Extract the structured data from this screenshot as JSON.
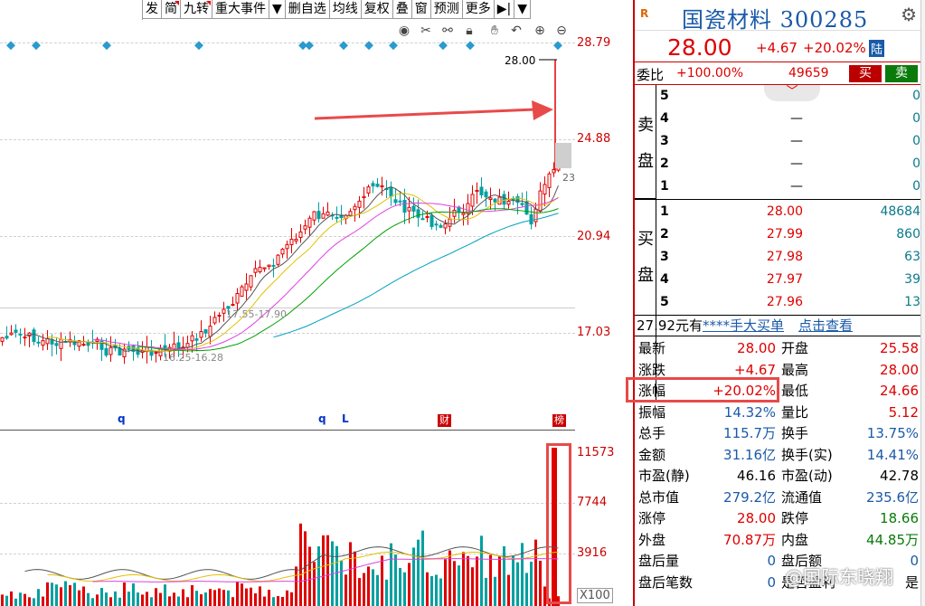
{
  "toolbar": {
    "items": [
      "发",
      "简",
      "九转",
      "重大事件",
      "▼",
      "删自选",
      "均线",
      "复权",
      "叠",
      "窗",
      "预测",
      "更多",
      "▶|",
      "▼"
    ],
    "icons": [
      "eye-icon",
      "scissors-icon",
      "link-icon",
      "lock-icon",
      "hand-icon",
      "undo-icon",
      "zoom-in-icon",
      "zoom-out-icon"
    ]
  },
  "chart": {
    "price_axis": [
      "28.79",
      "24.88",
      "20.94",
      "17.03"
    ],
    "volume_axis": [
      "11573",
      "7744",
      "3916"
    ],
    "volume_unit": "X100",
    "last_price_label": "28.00",
    "range_label_high": "17.55-17.90",
    "range_label_low": "16.25-16.28",
    "tag_23": "23",
    "markers": [
      "q",
      "q",
      "L",
      "财",
      "榜"
    ],
    "colors": {
      "up": "#e00000",
      "down": "#00a0a0",
      "ma5": "#555555",
      "ma10": "#e4c000",
      "ma20": "#e040e0",
      "ma30": "#00a000",
      "ma60": "#00a0c0",
      "arrow": "#e84a4a"
    }
  },
  "quote": {
    "logo": "R",
    "name": "国瓷材料 300285",
    "price": "28.00",
    "change": "+4.67",
    "change_pct": "+20.02%",
    "badge": "陆",
    "weibi_label": "委比",
    "weibi": "+100.00%",
    "weicha": "49659",
    "buy_btn": "买",
    "sell_btn": "卖",
    "ask_side_label": [
      "卖",
      "盘"
    ],
    "bid_side_label": [
      "买",
      "盘"
    ],
    "asks": [
      {
        "level": "5",
        "price": "",
        "qty": "0"
      },
      {
        "level": "4",
        "price": "—",
        "qty": "0"
      },
      {
        "level": "3",
        "price": "—",
        "qty": "0"
      },
      {
        "level": "2",
        "price": "—",
        "qty": "0"
      },
      {
        "level": "1",
        "price": "—",
        "qty": "0"
      }
    ],
    "bids": [
      {
        "level": "1",
        "price": "28.00",
        "qty": "48684"
      },
      {
        "level": "2",
        "price": "27.99",
        "qty": "860"
      },
      {
        "level": "3",
        "price": "27.98",
        "qty": "63"
      },
      {
        "level": "4",
        "price": "27.97",
        "qty": "39"
      },
      {
        "level": "5",
        "price": "27.96",
        "qty": "13"
      }
    ],
    "big_buy": {
      "amount": "27.92元有",
      "qty": "****手",
      "big": "大买单",
      "link": "点击查看"
    },
    "stats": [
      {
        "l1": "最新",
        "v1": "28.00",
        "c1": "red",
        "l2": "开盘",
        "v2": "25.58",
        "c2": "red"
      },
      {
        "l1": "涨跌",
        "v1": "+4.67",
        "c1": "red",
        "l2": "最高",
        "v2": "28.00",
        "c2": "red"
      },
      {
        "l1": "涨幅",
        "v1": "+20.02%",
        "c1": "red",
        "l2": "最低",
        "v2": "24.66",
        "c2": "red"
      },
      {
        "l1": "振幅",
        "v1": "14.32%",
        "c1": "blue",
        "l2": "量比",
        "v2": "5.12",
        "c2": "red"
      },
      {
        "l1": "总手",
        "v1": "115.7万",
        "c1": "blue",
        "l2": "换手",
        "v2": "13.75%",
        "c2": "blue"
      },
      {
        "l1": "金额",
        "v1": "31.16亿",
        "c1": "blue",
        "l2": "换手(实)",
        "v2": "14.41%",
        "c2": "blue"
      },
      {
        "l1": "市盈(静)",
        "v1": "46.16",
        "c1": "dark",
        "l2": "市盈(动)",
        "v2": "42.78",
        "c2": "dark"
      },
      {
        "l1": "总市值",
        "v1": "279.2亿",
        "c1": "blue",
        "l2": "流通值",
        "v2": "235.6亿",
        "c2": "blue"
      },
      {
        "l1": "涨停",
        "v1": "28.00",
        "c1": "red",
        "l2": "跌停",
        "v2": "18.66",
        "c2": "green"
      },
      {
        "l1": "外盘",
        "v1": "70.87万",
        "c1": "red",
        "l2": "内盘",
        "v2": "44.85万",
        "c2": "green"
      },
      {
        "l1": "盘后量",
        "v1": "0",
        "c1": "blue",
        "l2": "盘后额",
        "v2": "0",
        "c2": "blue"
      },
      {
        "l1": "盘后笔数",
        "v1": "0",
        "c1": "blue",
        "l2": "是否盈利",
        "v2": "是",
        "c2": "dark"
      }
    ]
  },
  "watermark": "@国际东晓翔"
}
